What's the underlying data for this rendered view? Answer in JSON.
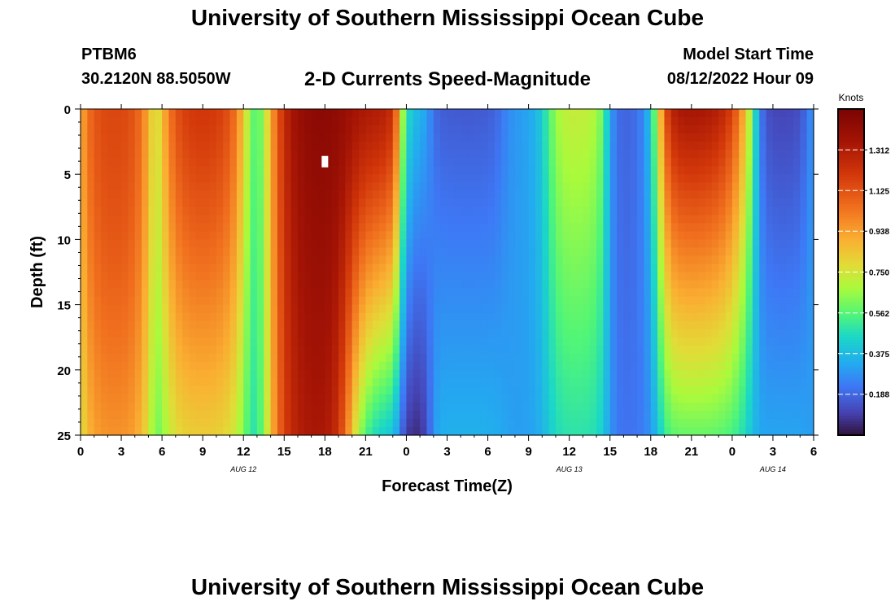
{
  "page": {
    "title": "University of Southern Mississippi Ocean Cube",
    "title_repeat": "University of Southern Mississippi Ocean Cube"
  },
  "header": {
    "station": "PTBM6",
    "coords": "30.2120N  88.5050W",
    "chart_title": "2-D Currents Speed-Magnitude",
    "model_start_label": "Model Start Time",
    "model_start_value": "08/12/2022 Hour 09"
  },
  "chart_data": {
    "type": "heatmap",
    "title": "2-D Currents Speed-Magnitude",
    "xlabel": "Forecast Time(Z)",
    "ylabel": "Depth (ft)",
    "x_range_hours": [
      0,
      54
    ],
    "y_range_ft": [
      0,
      25
    ],
    "x_tick_hours": [
      0,
      3,
      6,
      9,
      12,
      15,
      18,
      21,
      24,
      27,
      30,
      33,
      36,
      39,
      42,
      45,
      48,
      51,
      54
    ],
    "x_tick_labels": [
      "0",
      "3",
      "6",
      "9",
      "12",
      "15",
      "18",
      "21",
      "0",
      "3",
      "6",
      "9",
      "12",
      "15",
      "18",
      "21",
      "0",
      "3",
      "6"
    ],
    "date_labels": [
      {
        "hour": 12,
        "text": "AUG 12"
      },
      {
        "hour": 36,
        "text": "AUG 13"
      },
      {
        "hour": 51,
        "text": "AUG 14"
      }
    ],
    "y_ticks": [
      0,
      5,
      10,
      15,
      20,
      25
    ],
    "y_tick_labels": [
      "0",
      "5",
      "10",
      "15",
      "20",
      "25"
    ],
    "colorbar": {
      "unit": "Knots",
      "min": 0.0,
      "max": 1.5,
      "ticks": [
        0.188,
        0.375,
        0.562,
        0.75,
        0.938,
        1.125,
        1.312
      ],
      "tick_labels": [
        "0.188",
        "0.375",
        "0.562",
        "0.750",
        "0.938",
        "1.125",
        "1.312"
      ]
    },
    "features": [
      {
        "hour": 2.5,
        "top": 1.2,
        "bottom": 1.0,
        "width": 1.6,
        "weight": 1,
        "depth_exp": 1.5
      },
      {
        "hour": 9.0,
        "top": 1.25,
        "bottom": 0.85,
        "width": 1.8,
        "weight": 1,
        "depth_exp": 1.2
      },
      {
        "hour": 18.0,
        "top": 1.5,
        "bottom": 1.4,
        "width": 2.3,
        "weight": 1,
        "depth_exp": 1.0
      },
      {
        "hour": 21.5,
        "top": 1.35,
        "bottom": 0.4,
        "width": 1.8,
        "weight": 1,
        "depth_exp": 1.2
      },
      {
        "hour": 28.5,
        "top": 0.15,
        "bottom": 0.35,
        "width": 2.2,
        "weight": 1,
        "depth_exp": 1.0
      },
      {
        "hour": 24.6,
        "top": 0.35,
        "bottom": 0.02,
        "width": 0.9,
        "weight": 1,
        "depth_exp": 1.0
      },
      {
        "hour": 33.0,
        "top": 0.3,
        "bottom": 0.3,
        "width": 1.5,
        "weight": 1,
        "depth_exp": 1.0
      },
      {
        "hour": 36.0,
        "top": 0.75,
        "bottom": 0.5,
        "width": 1.8,
        "weight": 1,
        "depth_exp": 1.0
      },
      {
        "hour": 41.0,
        "top": 0.15,
        "bottom": 0.2,
        "width": 1.4,
        "weight": 1,
        "depth_exp": 1.0
      },
      {
        "hour": 45.0,
        "top": 1.4,
        "bottom": 0.6,
        "width": 2.3,
        "weight": 1,
        "depth_exp": 1.0
      },
      {
        "hour": 51.7,
        "top": 0.1,
        "bottom": 0.32,
        "width": 1.0,
        "weight": 1,
        "depth_exp": 1.0
      }
    ],
    "baseline_speed": 0.3,
    "grid_columns": 108,
    "grid_rows": 40
  }
}
